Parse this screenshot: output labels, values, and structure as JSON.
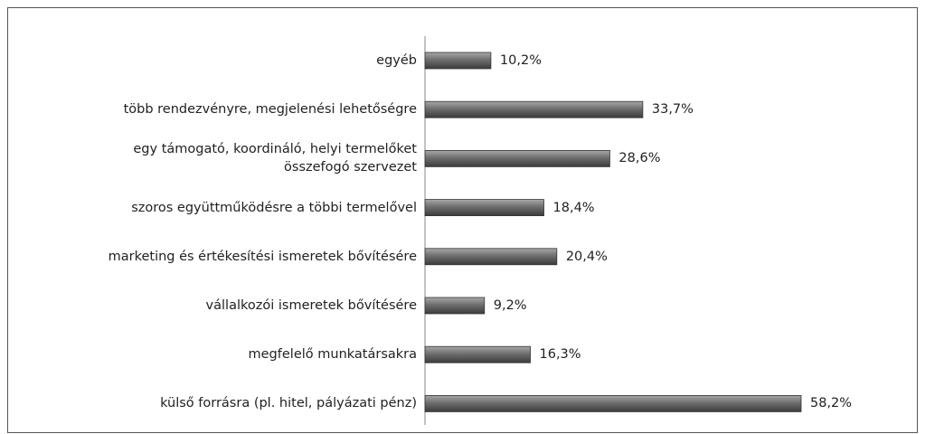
{
  "chart_data": {
    "type": "bar",
    "orientation": "horizontal",
    "color": "#6e6e6e",
    "categories": [
      "egyéb",
      "több rendezvényre, megjelenési lehetőségre",
      "egy támogató, koordináló, helyi termelőket\nösszefogó szervezet",
      "szoros együttműködésre a többi termelővel",
      "marketing és értékesítési ismeretek bővítésére",
      "vállalkozói ismeretek bővítésére",
      "megfelelő munkatársakra",
      "külső forrásra (pl. hitel, pályázati pénz)"
    ],
    "values": [
      10.2,
      33.7,
      28.6,
      18.4,
      20.4,
      9.2,
      16.3,
      58.2
    ],
    "value_labels": [
      "10,2%",
      "33,7%",
      "28,6%",
      "18,4%",
      "20,4%",
      "9,2%",
      "16,3%",
      "58,2%"
    ]
  }
}
